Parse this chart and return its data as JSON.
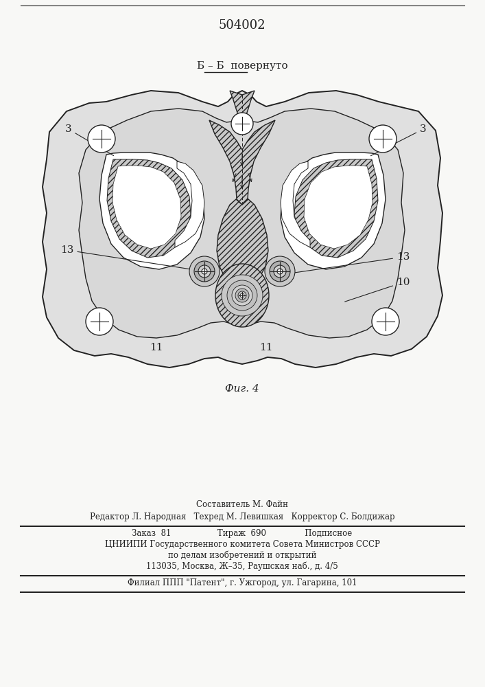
{
  "title": "504002",
  "section_label": "Б – Б  повернуто",
  "fig_label": "Фиг. 4",
  "bg_color": "#f8f8f6",
  "line_color": "#222222",
  "footer_lines": [
    "Составитель М. Файн",
    "Редактор Л. Народная   Техред М. Левишкая   Корректор С. Болдижар",
    "Заказ  81                  Тираж  690               Подписное",
    "ЦНИИПИ Государственного комитета Совета Министров СССР",
    "по делам изобретений и открытий",
    "113035, Москва, Ж–35, Раушская наб., д. 4/5",
    "Филиал ППП \"Патент\", г. Ужгород, ул. Гагарина, 101"
  ]
}
